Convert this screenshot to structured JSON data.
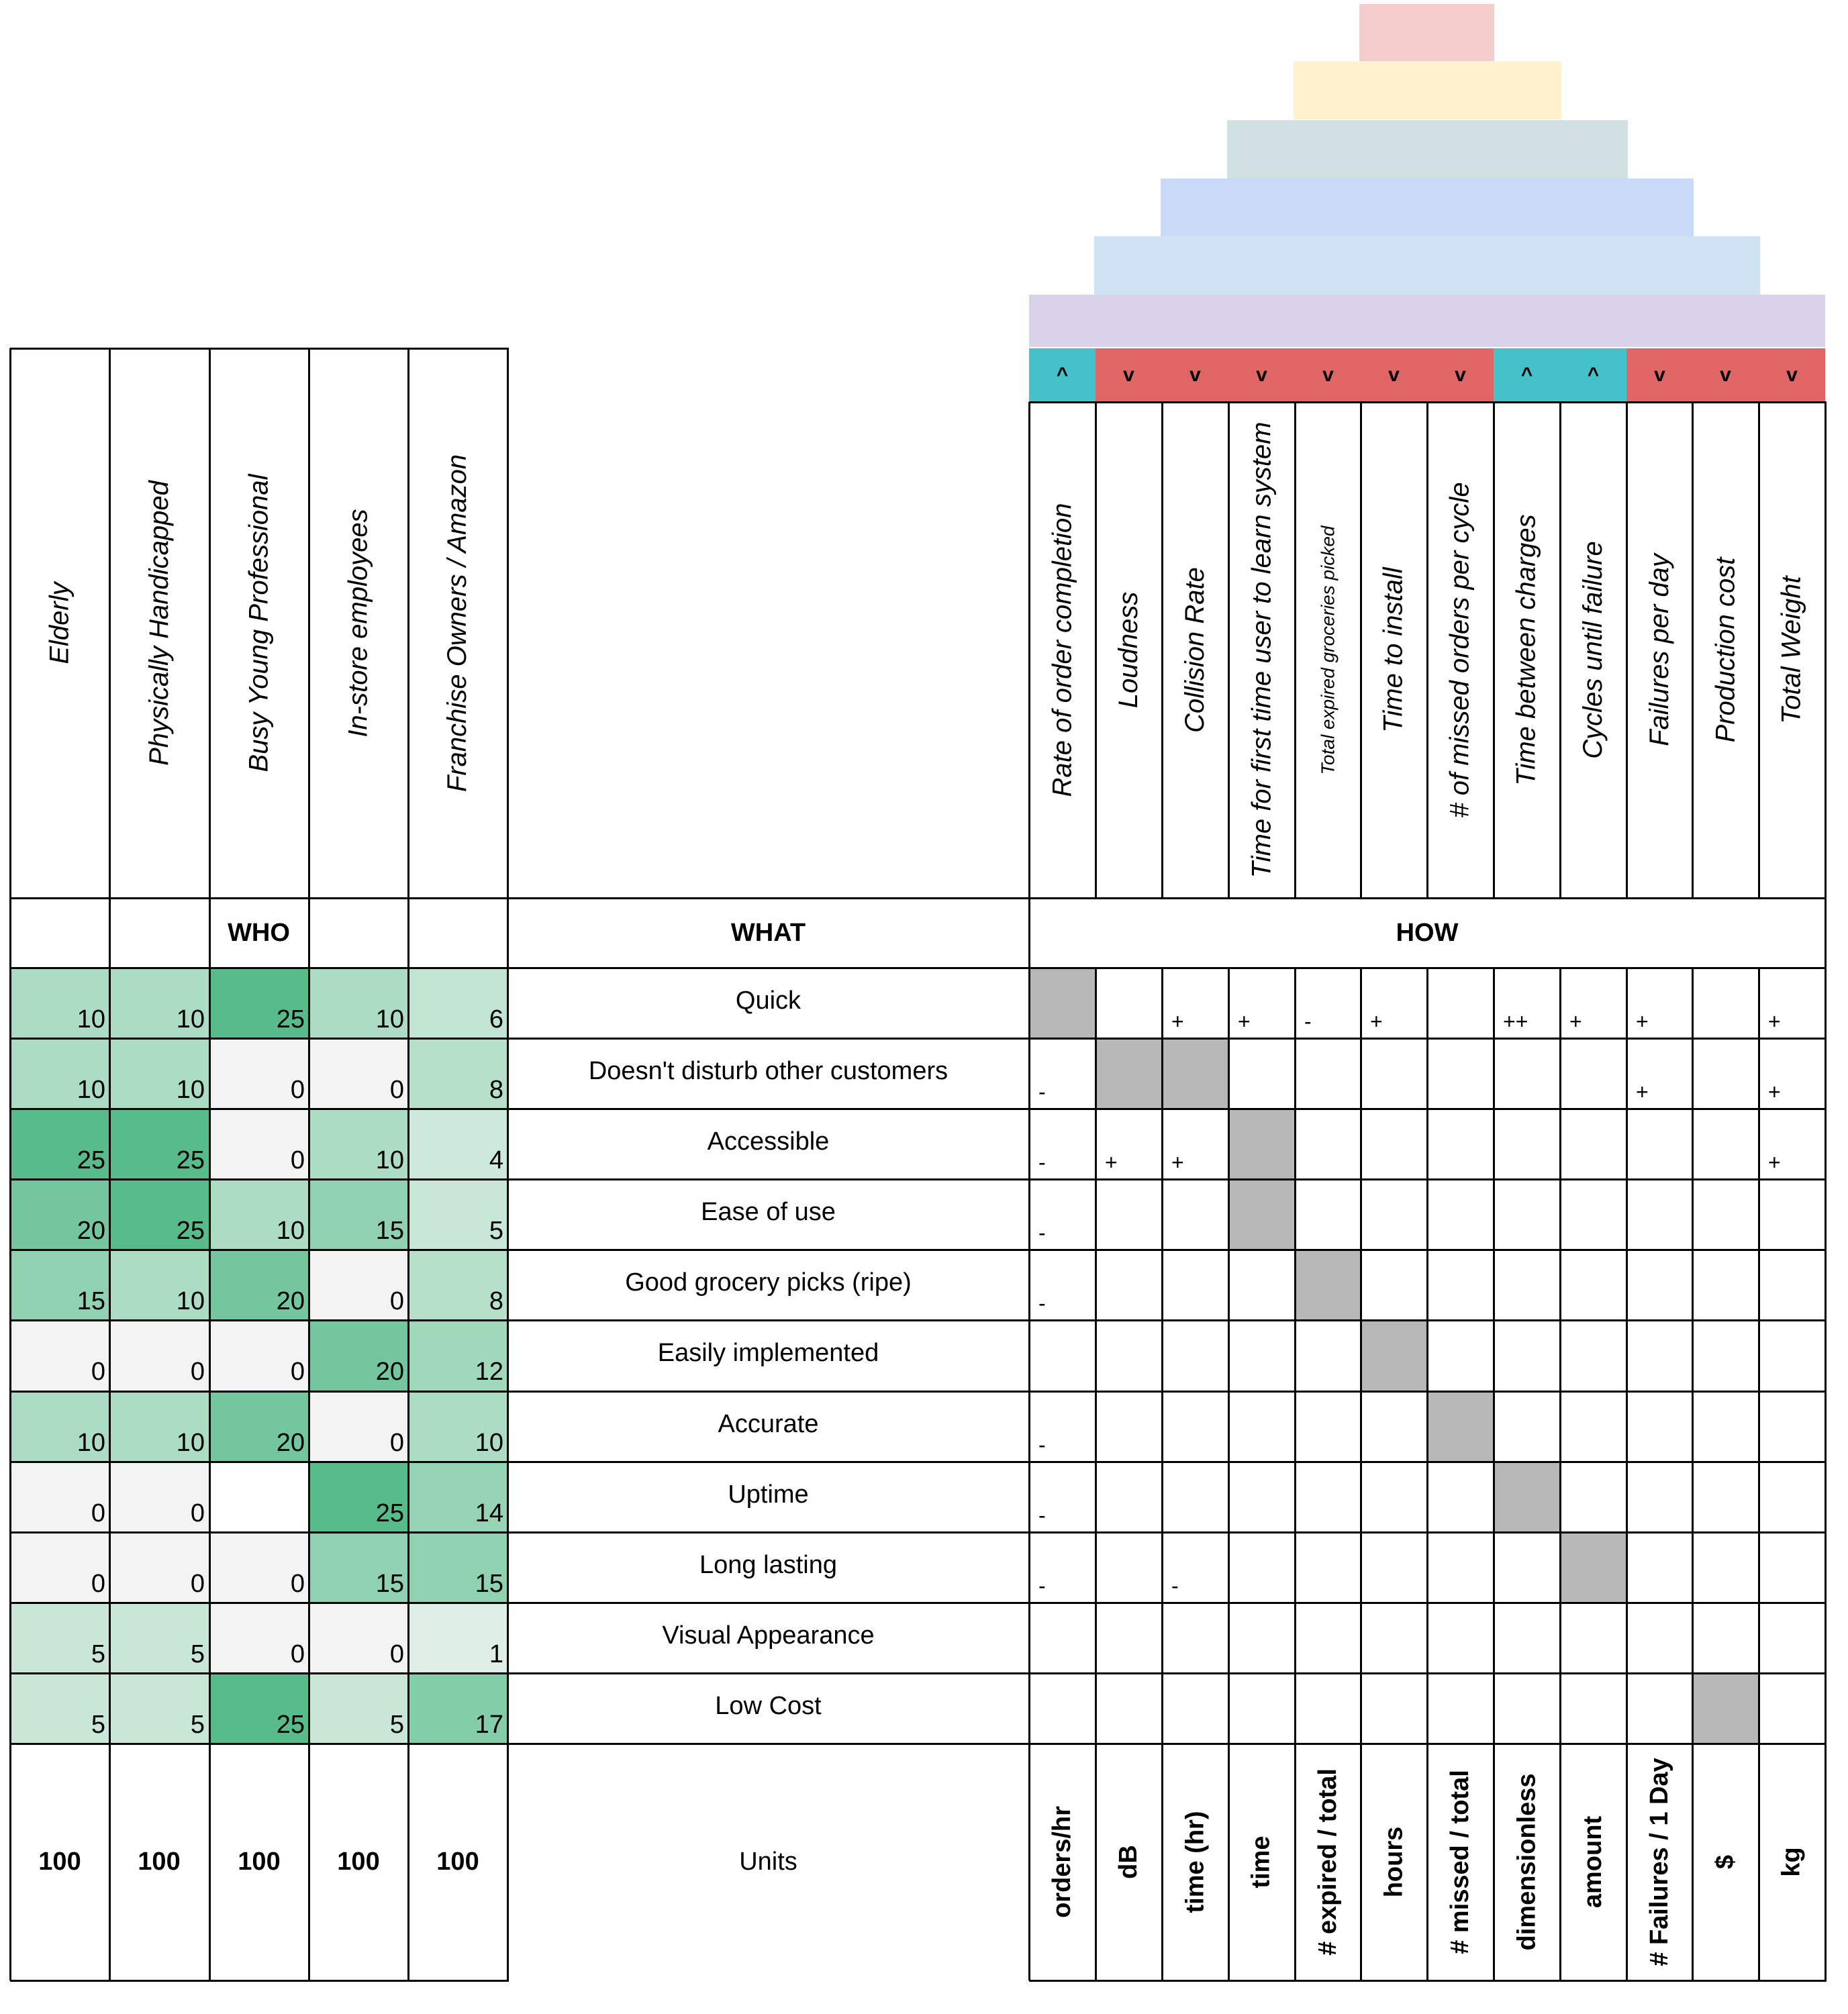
{
  "who": {
    "heading": "WHO",
    "customers": [
      "Elderly",
      "Physically Handicapped",
      "Busy Young Professional",
      "In-store employees",
      "Franchise Owners / Amazon"
    ],
    "totals": [
      "100",
      "100",
      "100",
      "100",
      "100"
    ]
  },
  "what": {
    "heading": "WHAT",
    "requirements": [
      "Quick",
      "Doesn't disturb other customers",
      "Accessible",
      "Ease of use",
      "Good grocery picks (ripe)",
      "Easily implemented",
      "Accurate",
      "Uptime",
      "Long lasting",
      "Visual Appearance",
      "Low Cost"
    ],
    "units_label": "Units"
  },
  "how": {
    "heading": "HOW",
    "directions": [
      "^",
      "v",
      "v",
      "v",
      "v",
      "v",
      "v",
      "^",
      "^",
      "v",
      "v",
      "v"
    ],
    "metrics": [
      "Rate of order completion",
      "Loudness",
      "Collision Rate",
      "Time for first time user to learn system",
      "Total expired groceries picked",
      "Time to install",
      "# of missed orders per cycle",
      "Time between charges",
      "Cycles until failure",
      "Failures per day",
      "Production cost",
      "Total Weight"
    ],
    "units": [
      "orders/hr",
      "dB",
      "time (hr)",
      "time",
      "# expired / total",
      "hours",
      "# missed / total",
      "dimensionless",
      "amount",
      "# Failures / 1 Day",
      "$",
      "kg"
    ]
  },
  "weights": [
    [
      "10",
      "10",
      "25",
      "10",
      "6"
    ],
    [
      "10",
      "10",
      "0",
      "0",
      "8"
    ],
    [
      "25",
      "25",
      "0",
      "10",
      "4"
    ],
    [
      "20",
      "25",
      "10",
      "15",
      "5"
    ],
    [
      "15",
      "10",
      "20",
      "0",
      "8"
    ],
    [
      "0",
      "0",
      "0",
      "20",
      "12"
    ],
    [
      "10",
      "10",
      "20",
      "0",
      "10"
    ],
    [
      "0",
      "0",
      "",
      "25",
      "14"
    ],
    [
      "0",
      "0",
      "0",
      "15",
      "15"
    ],
    [
      "5",
      "5",
      "0",
      "0",
      "1"
    ],
    [
      "5",
      "5",
      "25",
      "5",
      "17"
    ]
  ],
  "matrix": [
    [
      "#",
      "",
      "+",
      "+",
      "-",
      "+",
      "",
      "++",
      "+",
      "+",
      "",
      "+"
    ],
    [
      "-",
      "#",
      "#",
      "",
      "",
      "",
      "",
      "",
      "",
      "+",
      "",
      "+"
    ],
    [
      "-",
      "+",
      "+",
      "#",
      "",
      "",
      "",
      "",
      "",
      "",
      "",
      "+"
    ],
    [
      "-",
      "",
      "",
      "#",
      "",
      "",
      "",
      "",
      "",
      "",
      "",
      ""
    ],
    [
      "-",
      "",
      "",
      "",
      "#",
      "",
      "",
      "",
      "",
      "",
      "",
      ""
    ],
    [
      "",
      "",
      "",
      "",
      "",
      "#",
      "",
      "",
      "",
      "",
      "",
      ""
    ],
    [
      "-",
      "",
      "",
      "",
      "",
      "",
      "#",
      "",
      "",
      "",
      "",
      ""
    ],
    [
      "-",
      "",
      "",
      "",
      "",
      "",
      "",
      "#",
      "",
      "",
      "",
      ""
    ],
    [
      "-",
      "",
      "-",
      "",
      "",
      "",
      "",
      "",
      "#",
      "",
      "",
      ""
    ],
    [
      "",
      "",
      "",
      "",
      "",
      "",
      "",
      "",
      "",
      "",
      "",
      ""
    ],
    [
      "",
      "",
      "",
      "",
      "",
      "",
      "",
      "",
      "",
      "",
      "#",
      ""
    ]
  ],
  "colors": {
    "roof": [
      "#f4cccc",
      "#fff2cc",
      "#d0e0e3",
      "#c9daf8",
      "#cfe2f3",
      "#d9d2e9"
    ],
    "up": "#45c1c9",
    "down": "#e06666",
    "shaded": "#b7b7b7",
    "zero": "#f3f3f3"
  }
}
